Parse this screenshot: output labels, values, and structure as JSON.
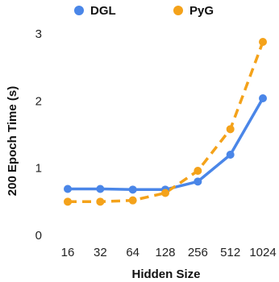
{
  "chart_data": {
    "type": "line",
    "categories": [
      "16",
      "32",
      "64",
      "128",
      "256",
      "512",
      "1024"
    ],
    "series": [
      {
        "name": "DGL",
        "values": [
          0.69,
          0.69,
          0.68,
          0.68,
          0.8,
          1.2,
          2.04
        ],
        "color": "#4a86e8",
        "style": "solid"
      },
      {
        "name": "PyG",
        "values": [
          0.5,
          0.5,
          0.52,
          0.63,
          0.96,
          1.58,
          2.88
        ],
        "color": "#f4a21a",
        "style": "dashed"
      }
    ],
    "xlabel": "Hidden Size",
    "ylabel": "200 Epoch Time (s)",
    "ylim": [
      0,
      3
    ],
    "yticks": [
      0,
      1,
      2,
      3
    ],
    "grid": false,
    "legend": "top"
  }
}
